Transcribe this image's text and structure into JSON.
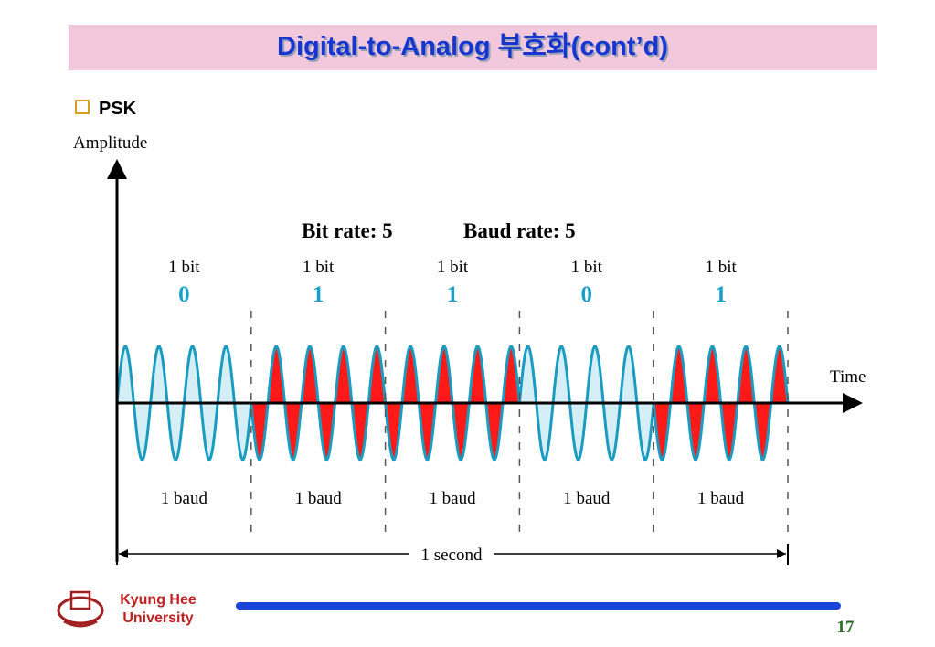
{
  "header": {
    "title": "Digital-to-Analog 부호화(cont’d)",
    "bullet": "PSK"
  },
  "diagram": {
    "y_axis_label": "Amplitude",
    "x_axis_label": "Time",
    "bit_rate": "Bit rate: 5",
    "baud_rate": "Baud rate: 5",
    "segments": [
      {
        "bit_label": "1 bit",
        "bit": 0,
        "baud_label": "1 baud"
      },
      {
        "bit_label": "1 bit",
        "bit": 1,
        "baud_label": "1 baud"
      },
      {
        "bit_label": "1 bit",
        "bit": 1,
        "baud_label": "1 baud"
      },
      {
        "bit_label": "1 bit",
        "bit": 0,
        "baud_label": "1 baud"
      },
      {
        "bit_label": "1 bit",
        "bit": 1,
        "baud_label": "1 baud"
      }
    ],
    "duration_label": "1 second"
  },
  "footer": {
    "university_line1": "Kyung Hee",
    "university_line2": "University",
    "page_number": "17"
  }
}
